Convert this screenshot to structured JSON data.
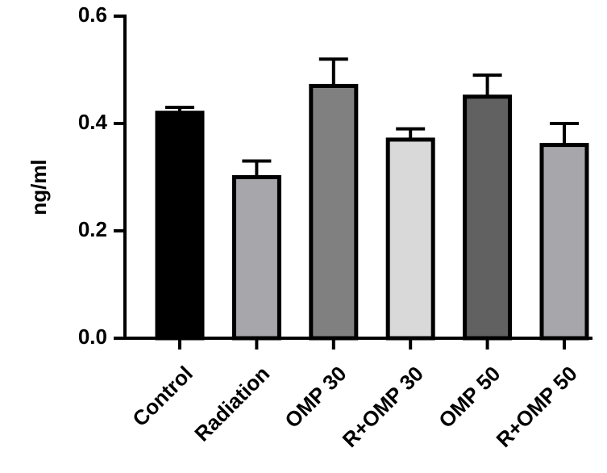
{
  "chart_data": {
    "type": "bar",
    "title": "",
    "xlabel": "",
    "ylabel": "ng/ml",
    "ylim": [
      0,
      0.6
    ],
    "yticks": [
      0.0,
      0.2,
      0.4,
      0.6
    ],
    "ytick_labels": [
      "0.0",
      "0.2",
      "0.4",
      "0.6"
    ],
    "grid": false,
    "categories": [
      "Control",
      "Radiation",
      "OMP 30",
      "R+OMP 30",
      "OMP 50",
      "R+OMP 50"
    ],
    "values": [
      0.42,
      0.3,
      0.47,
      0.37,
      0.45,
      0.36
    ],
    "error_upper": [
      0.01,
      0.03,
      0.05,
      0.02,
      0.04,
      0.04
    ],
    "bar_colors": [
      "#000000",
      "#a6a6ab",
      "#808080",
      "#d9d9d9",
      "#616161",
      "#a6a6ab"
    ],
    "edge_color": "#000000"
  }
}
